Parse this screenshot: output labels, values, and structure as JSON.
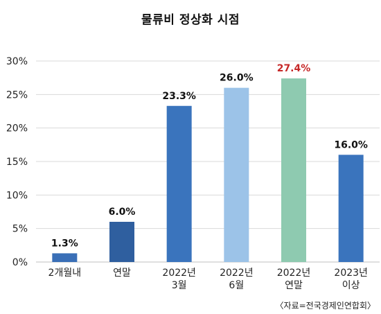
{
  "chart_data": {
    "type": "bar",
    "title": "물류비 정상화 시점",
    "categories": [
      [
        "2개월내"
      ],
      [
        "연말"
      ],
      [
        "2022년",
        "3월"
      ],
      [
        "2022년",
        "6월"
      ],
      [
        "2022년",
        "연말"
      ],
      [
        "2023년",
        "이상"
      ]
    ],
    "values": [
      1.3,
      6.0,
      23.3,
      26.0,
      27.4,
      16.0
    ],
    "value_labels": [
      "1.3%",
      "6.0%",
      "23.3%",
      "26.0%",
      "27.4%",
      "16.0%"
    ],
    "bar_colors": [
      "#3a6fb7",
      "#2f5f9f",
      "#3a74bd",
      "#9cc3e8",
      "#8ecab0",
      "#3a74bd"
    ],
    "label_colors": [
      "#111111",
      "#111111",
      "#111111",
      "#111111",
      "#c62828",
      "#111111"
    ],
    "y_ticks": [
      "0%",
      "5%",
      "10%",
      "15%",
      "20%",
      "25%",
      "30%"
    ],
    "ylim": [
      0,
      30
    ],
    "grid": true,
    "xlabel": "",
    "ylabel": ""
  },
  "source": "〈자료=전국경제인연합회〉"
}
